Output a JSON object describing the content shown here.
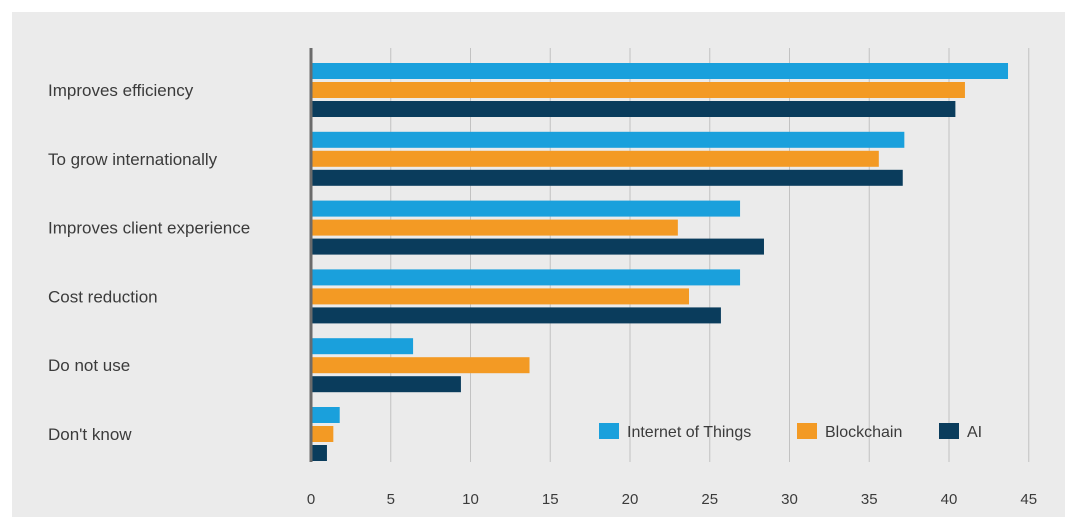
{
  "chart_data": {
    "type": "bar",
    "orientation": "horizontal",
    "categories": [
      "Improves efficiency",
      "To grow internationally",
      "Improves client experience",
      "Cost reduction",
      "Do not use",
      "Don't know"
    ],
    "series": [
      {
        "name": "Internet of Things",
        "color": "#1aa0dc",
        "values": [
          43.7,
          37.2,
          26.9,
          26.9,
          6.4,
          1.8
        ]
      },
      {
        "name": "Blockchain",
        "color": "#f39a24",
        "values": [
          41.0,
          35.6,
          23.0,
          23.7,
          13.7,
          1.4
        ]
      },
      {
        "name": "AI",
        "color": "#0a3c5c",
        "values": [
          40.4,
          37.1,
          28.4,
          25.7,
          9.4,
          1.0
        ]
      }
    ],
    "xlim": [
      0,
      45
    ],
    "xticks": [
      0,
      5,
      10,
      15,
      20,
      25,
      30,
      35,
      40,
      45
    ],
    "grid": true,
    "legend_position": "bottom-right",
    "title": "",
    "xlabel": "",
    "ylabel": ""
  }
}
